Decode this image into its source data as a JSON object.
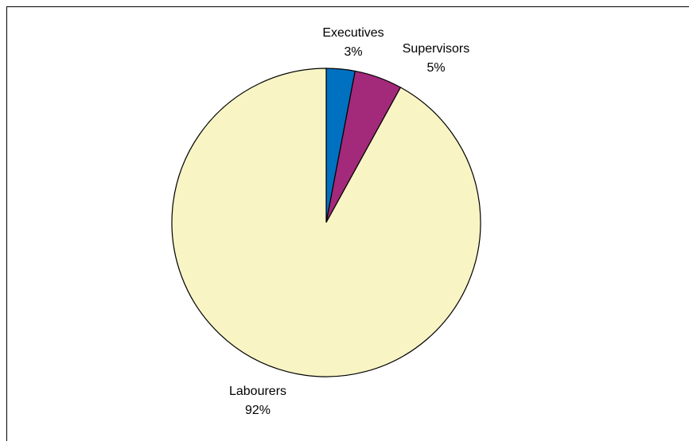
{
  "chart_data": {
    "type": "pie",
    "title": "",
    "legend": "none",
    "start_angle_deg": 0,
    "direction": "clockwise",
    "slices": [
      {
        "name": "Executives",
        "value": 3,
        "label": "3%",
        "color": "#0070C0"
      },
      {
        "name": "Supervisors",
        "value": 5,
        "label": "5%",
        "color": "#A3297A"
      },
      {
        "name": "Labourers",
        "value": 92,
        "label": "92%",
        "color": "#F8F4C4"
      }
    ],
    "slice_stroke": "#000000"
  }
}
